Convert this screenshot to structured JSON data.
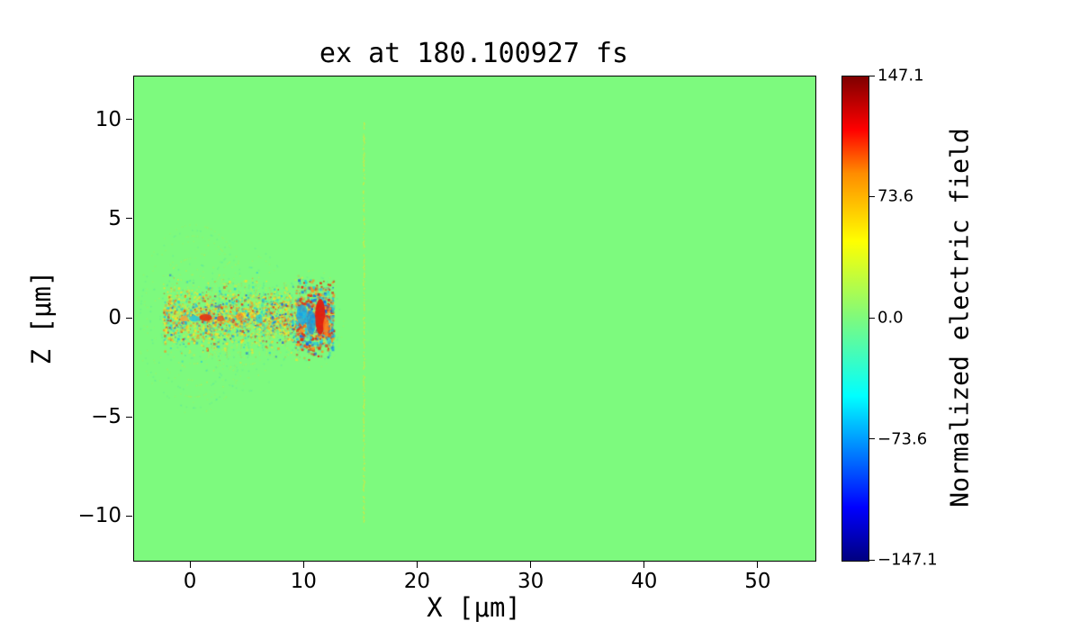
{
  "figure": {
    "background": "#ffffff"
  },
  "chart_data": {
    "type": "heatmap",
    "title": "ex at 180.100927 fs",
    "xlabel": "X [μm]",
    "ylabel": "Z [μm]",
    "xlim": [
      -5,
      55
    ],
    "ylim": [
      -12.2,
      12.2
    ],
    "xticks": [
      0,
      10,
      20,
      30,
      40,
      50
    ],
    "xtick_labels": [
      "0",
      "10",
      "20",
      "30",
      "40",
      "50"
    ],
    "yticks": [
      10,
      5,
      0,
      -5,
      -10
    ],
    "ytick_labels": [
      "10",
      "5",
      "0",
      "−5",
      "−10"
    ],
    "grid": false,
    "legend": false,
    "colorbar": {
      "label": "Normalized electric field",
      "vmin": -147.1,
      "vmax": 147.1,
      "ticks": [
        147.1,
        73.6,
        0.0,
        -73.6,
        -147.1
      ],
      "tick_labels": [
        "147.1",
        "73.6",
        "0.0",
        "−73.6",
        "−147.1"
      ],
      "colormap": "jet",
      "gradient_stops": [
        {
          "pos": 0.0,
          "color": "#00007f"
        },
        {
          "pos": 0.11,
          "color": "#0000ff"
        },
        {
          "pos": 0.34,
          "color": "#00ffff"
        },
        {
          "pos": 0.5,
          "color": "#7dfa7e"
        },
        {
          "pos": 0.66,
          "color": "#ffff00"
        },
        {
          "pos": 0.8,
          "color": "#ff8c00"
        },
        {
          "pos": 0.89,
          "color": "#ff0000"
        },
        {
          "pos": 1.0,
          "color": "#7f0000"
        }
      ]
    },
    "field": {
      "background_value": 0.0,
      "background_color": "#7dfa7e",
      "palette": {
        "yellow": "#ffdf26",
        "orange": "#ff9020",
        "red": "#e8270f",
        "cyan": "#1fc8e0",
        "blue": "#1560e6"
      },
      "features": {
        "description": "Laser pulse field snapshot: speckled oscillating field along z=0 between x=-2.5 and x=12.6 um, concentric ring fringes around the pulse, strong red/cyan lobes near x=10-12, and a thin perturbed foil line at x=15.2 um spanning z=-10.2 to 10.2 um",
        "rings": [
          {
            "cx": 0.2,
            "cz": 0.0,
            "r0": 0.6,
            "r1": 5.0,
            "count": 16,
            "fade": 3.2,
            "zmax": 5.0
          },
          {
            "cx": 5.0,
            "cz": 0.0,
            "r0": 1.0,
            "r1": 3.8,
            "count": 9,
            "fade": 3.0,
            "zmax": 4.0
          },
          {
            "cx": 10.8,
            "cz": 0.0,
            "r0": 0.8,
            "r1": 2.6,
            "count": 7,
            "fade": 2.4,
            "zmax": 2.8
          }
        ],
        "pulse": {
          "x_range": [
            -2.4,
            12.6
          ],
          "z_sigma": 0.7,
          "z_clip": 2.4,
          "dots": 2600
        },
        "striations": {
          "x_range": [
            1.5,
            9.8
          ],
          "x_step": 0.32,
          "z_max": 1.9,
          "z_step": 0.12
        },
        "cluster": {
          "x_range": [
            9.3,
            12.6
          ],
          "z_sigma": 1.0,
          "z_clip": 2.0,
          "dots": 700
        },
        "hot_spots": [
          {
            "x": -0.6,
            "z": 0.0,
            "rx": 0.35,
            "rz": 0.14,
            "color": "#f2a63c",
            "alpha": 0.85
          },
          {
            "x": 0.3,
            "z": 0.0,
            "rx": 0.45,
            "rz": 0.15,
            "color": "#28c8dc",
            "alpha": 0.85
          },
          {
            "x": 1.3,
            "z": 0.05,
            "rx": 0.55,
            "rz": 0.18,
            "color": "#e62e12",
            "alpha": 0.9
          },
          {
            "x": 2.6,
            "z": 0.0,
            "rx": 0.3,
            "rz": 0.15,
            "color": "#f0521e",
            "alpha": 0.8
          },
          {
            "x": 4.3,
            "z": 0.1,
            "rx": 0.35,
            "rz": 0.2,
            "color": "#ff9020",
            "alpha": 0.7
          },
          {
            "x": 6.0,
            "z": 0.0,
            "rx": 0.3,
            "rz": 0.2,
            "color": "#1fc8e0",
            "alpha": 0.7
          },
          {
            "x": 9.8,
            "z": 0.2,
            "rx": 0.5,
            "rz": 0.5,
            "color": "#19b4e6",
            "alpha": 0.8
          },
          {
            "x": 10.6,
            "z": -0.2,
            "rx": 0.4,
            "rz": 0.6,
            "color": "#17a0e0",
            "alpha": 0.8
          },
          {
            "x": 11.4,
            "z": 0.1,
            "rx": 0.45,
            "rz": 0.9,
            "color": "#e01f10",
            "alpha": 0.95
          },
          {
            "x": 11.9,
            "z": -0.4,
            "rx": 0.25,
            "rz": 0.5,
            "color": "#ff7a1a",
            "alpha": 0.8
          }
        ],
        "foil": {
          "x": 15.2,
          "z_range": [
            -10.2,
            10.2
          ]
        }
      }
    }
  }
}
